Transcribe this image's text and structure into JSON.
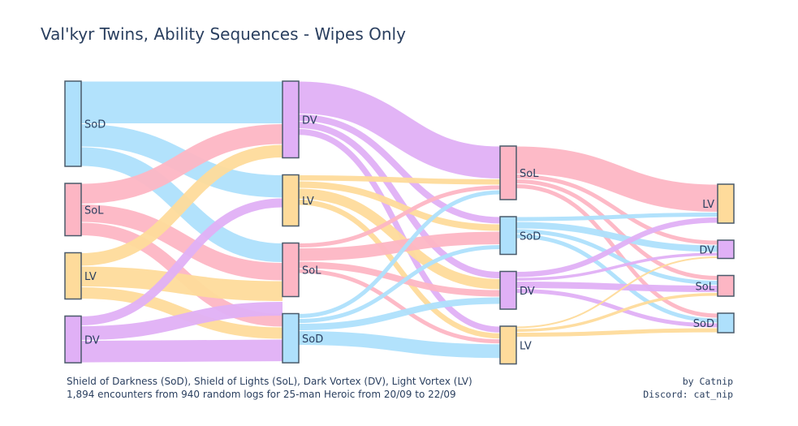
{
  "title": "Val'kyr Twins, Ability Sequences - Wipes Only",
  "footer": {
    "legend_line": "Shield of Darkness (SoD), Shield of Lights (SoL), Dark Vortex (DV), Light Vortex (LV)",
    "encounters_line": "1,894 encounters from 940 random logs for 25-man Heroic from 20/09 to 22/09",
    "author_line": "by Catnip",
    "discord_line": "Discord: cat_nip"
  },
  "colors": {
    "SoD": "#aee0fc",
    "SoL": "#fdb6c4",
    "LV": "#fedb9b",
    "DV": "#e0b0f6",
    "node_border": "#4a5a6a"
  },
  "chart_data": {
    "type": "sankey",
    "stages": [
      {
        "nodes": [
          {
            "id": "s0_SoD",
            "label": "SoD",
            "key": "SoD",
            "value": 700
          },
          {
            "id": "s0_SoL",
            "label": "SoL",
            "key": "SoL",
            "value": 430
          },
          {
            "id": "s0_LV",
            "label": "LV",
            "key": "LV",
            "value": 380
          },
          {
            "id": "s0_DV",
            "label": "DV",
            "key": "DV",
            "value": 384
          }
        ]
      },
      {
        "nodes": [
          {
            "id": "s1_DV",
            "label": "DV",
            "key": "DV",
            "value": 630
          },
          {
            "id": "s1_LV",
            "label": "LV",
            "key": "LV",
            "value": 420
          },
          {
            "id": "s1_SoL",
            "label": "SoL",
            "key": "SoL",
            "value": 440
          },
          {
            "id": "s1_SoD",
            "label": "SoD",
            "key": "SoD",
            "value": 404
          }
        ]
      },
      {
        "nodes": [
          {
            "id": "s2_SoL",
            "label": "SoL",
            "key": "SoL",
            "value": 440
          },
          {
            "id": "s2_SoD",
            "label": "SoD",
            "key": "SoD",
            "value": 310
          },
          {
            "id": "s2_DV",
            "label": "DV",
            "key": "DV",
            "value": 310
          },
          {
            "id": "s2_LV",
            "label": "LV",
            "key": "LV",
            "value": 310
          }
        ]
      },
      {
        "nodes": [
          {
            "id": "s3_LV",
            "label": "LV",
            "key": "LV",
            "value": 320
          },
          {
            "id": "s3_DV",
            "label": "DV",
            "key": "DV",
            "value": 150
          },
          {
            "id": "s3_SoL",
            "label": "SoL",
            "key": "SoL",
            "value": 170
          },
          {
            "id": "s3_SoD",
            "label": "SoD",
            "key": "SoD",
            "value": 160
          }
        ]
      }
    ],
    "links": [
      {
        "source": "s0_SoD",
        "target": "s1_DV",
        "value": 350
      },
      {
        "source": "s0_SoD",
        "target": "s1_LV",
        "value": 190
      },
      {
        "source": "s0_SoD",
        "target": "s1_SoL",
        "value": 160
      },
      {
        "source": "s0_SoL",
        "target": "s1_DV",
        "value": 170
      },
      {
        "source": "s0_SoL",
        "target": "s1_SoL",
        "value": 150
      },
      {
        "source": "s0_SoL",
        "target": "s1_SoD",
        "value": 110
      },
      {
        "source": "s0_LV",
        "target": "s1_DV",
        "value": 110
      },
      {
        "source": "s0_LV",
        "target": "s1_SoL",
        "value": 170
      },
      {
        "source": "s0_LV",
        "target": "s1_SoD",
        "value": 100
      },
      {
        "source": "s0_DV",
        "target": "s1_LV",
        "value": 80
      },
      {
        "source": "s0_DV",
        "target": "s1_SoL",
        "value": 120
      },
      {
        "source": "s0_DV",
        "target": "s1_SoD",
        "value": 184
      },
      {
        "source": "s1_DV",
        "target": "s2_SoL",
        "value": 270
      },
      {
        "source": "s1_DV",
        "target": "s2_SoD",
        "value": 60
      },
      {
        "source": "s1_DV",
        "target": "s2_DV",
        "value": 60
      },
      {
        "source": "s1_DV",
        "target": "s2_LV",
        "value": 55
      },
      {
        "source": "s1_LV",
        "target": "s2_SoL",
        "value": 50
      },
      {
        "source": "s1_LV",
        "target": "s2_SoD",
        "value": 60
      },
      {
        "source": "s1_LV",
        "target": "s2_DV",
        "value": 90
      },
      {
        "source": "s1_LV",
        "target": "s2_LV",
        "value": 50
      },
      {
        "source": "s1_SoL",
        "target": "s2_SoL",
        "value": 40
      },
      {
        "source": "s1_SoL",
        "target": "s2_SoD",
        "value": 110
      },
      {
        "source": "s1_SoL",
        "target": "s2_DV",
        "value": 60
      },
      {
        "source": "s1_SoL",
        "target": "s2_LV",
        "value": 40
      },
      {
        "source": "s1_SoD",
        "target": "s2_SoL",
        "value": 40
      },
      {
        "source": "s1_SoD",
        "target": "s2_SoD",
        "value": 40
      },
      {
        "source": "s1_SoD",
        "target": "s2_DV",
        "value": 60
      },
      {
        "source": "s1_SoD",
        "target": "s2_LV",
        "value": 120
      },
      {
        "source": "s2_SoL",
        "target": "s3_LV",
        "value": 230
      },
      {
        "source": "s2_SoL",
        "target": "s3_DV",
        "value": 40
      },
      {
        "source": "s2_SoL",
        "target": "s3_SoL",
        "value": 40
      },
      {
        "source": "s2_SoL",
        "target": "s3_SoD",
        "value": 40
      },
      {
        "source": "s2_SoD",
        "target": "s3_LV",
        "value": 40
      },
      {
        "source": "s2_SoD",
        "target": "s3_DV",
        "value": 60
      },
      {
        "source": "s2_SoD",
        "target": "s3_SoL",
        "value": 40
      },
      {
        "source": "s2_SoD",
        "target": "s3_SoD",
        "value": 40
      },
      {
        "source": "s2_DV",
        "target": "s3_LV",
        "value": 50
      },
      {
        "source": "s2_DV",
        "target": "s3_DV",
        "value": 30
      },
      {
        "source": "s2_DV",
        "target": "s3_SoL",
        "value": 60
      },
      {
        "source": "s2_DV",
        "target": "s3_SoD",
        "value": 40
      },
      {
        "source": "s2_LV",
        "target": "s3_DV",
        "value": 20
      },
      {
        "source": "s2_LV",
        "target": "s3_SoL",
        "value": 30
      },
      {
        "source": "s2_LV",
        "target": "s3_SoD",
        "value": 40
      }
    ]
  }
}
